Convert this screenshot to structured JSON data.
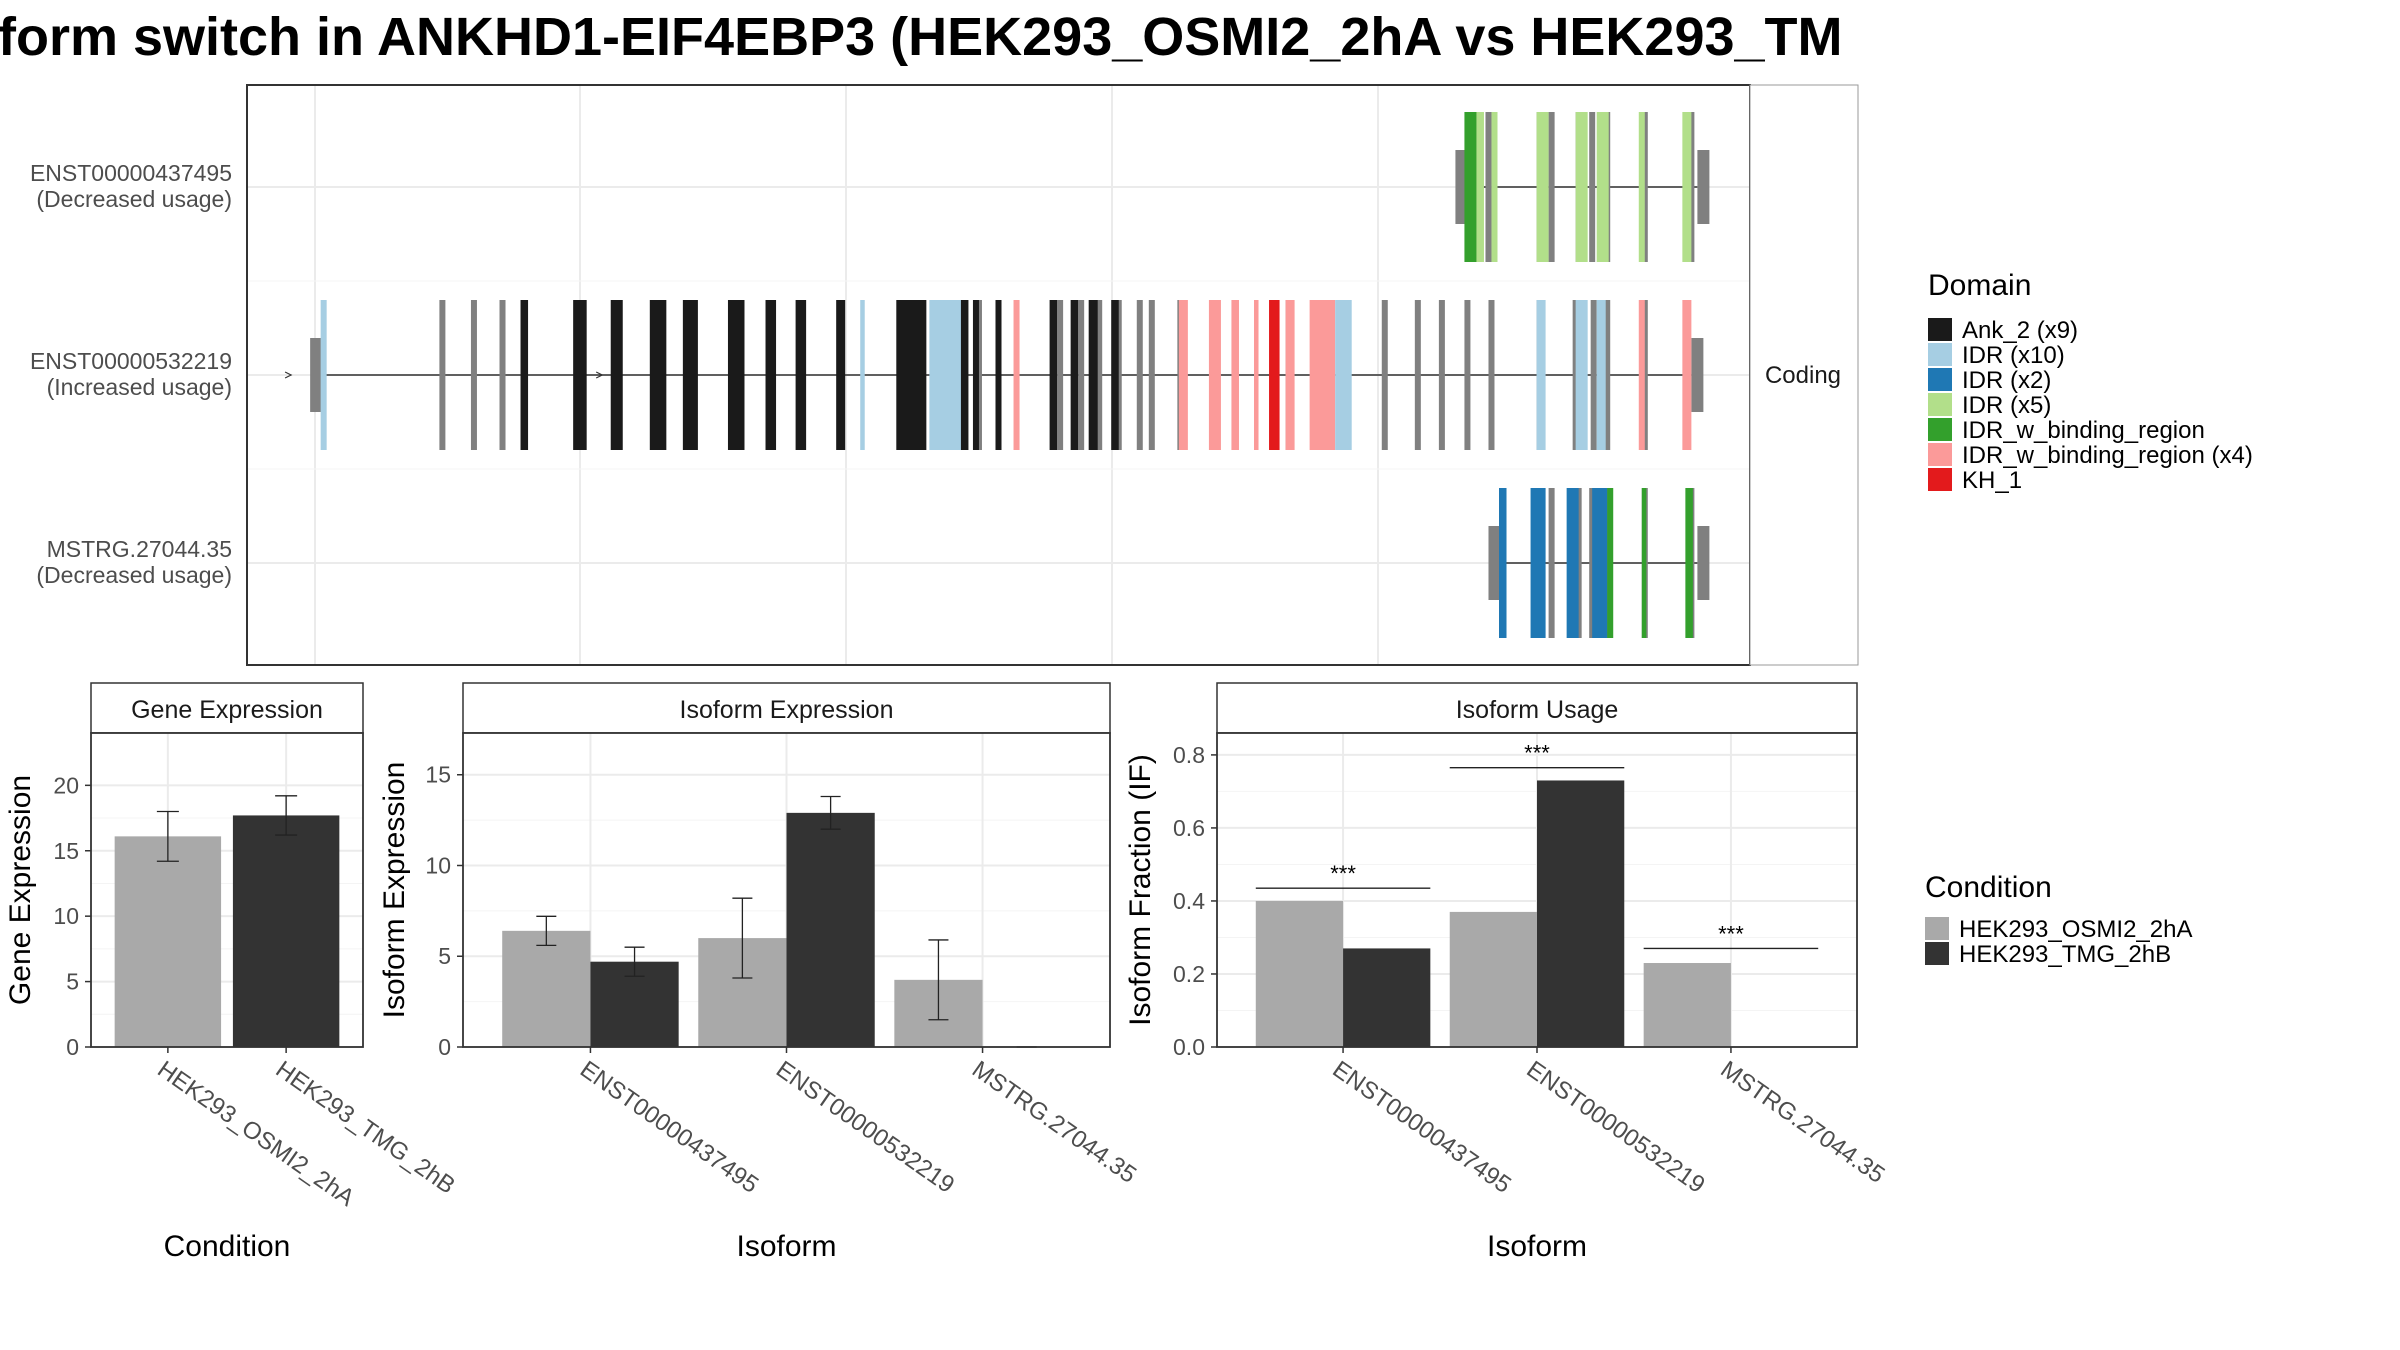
{
  "title": "form switch in ANKHD1-EIF4EBP3 (HEK293_OSMI2_2hA vs HEK293_TM",
  "colors": {
    "ank": "#1a1a1a",
    "idr10": "#a6cee3",
    "idr2": "#1f78b4",
    "idr5": "#b2df8a",
    "idrw": "#33a02c",
    "idrw4": "#fb9a99",
    "kh": "#e31a1c",
    "exon": "#808080",
    "cond_a": "#a9a9a9",
    "cond_b": "#333333",
    "grid": "#ebebeb"
  },
  "chart_data": [
    {
      "type": "gene-structure",
      "facet_label": "Coding",
      "isoforms": [
        {
          "name": "ENST00000437495",
          "usage": "(Decreased usage)",
          "exons": [
            0.808,
            0.818,
            0.826,
            0.86,
            0.868,
            0.886,
            0.895,
            0.905,
            0.93,
            0.961,
            0.965
          ],
          "domains": [
            {
              "domain": "idrw",
              "from": 0.81,
              "to": 0.818
            },
            {
              "domain": "idr5",
              "from": 0.818,
              "to": 0.823
            },
            {
              "domain": "idr5",
              "from": 0.828,
              "to": 0.832
            },
            {
              "domain": "idr5",
              "from": 0.858,
              "to": 0.866
            },
            {
              "domain": "idr5",
              "from": 0.884,
              "to": 0.892
            },
            {
              "domain": "idr5",
              "from": 0.898,
              "to": 0.906
            },
            {
              "domain": "idr5",
              "from": 0.926,
              "to": 0.93
            },
            {
              "domain": "idr5",
              "from": 0.955,
              "to": 0.961
            }
          ]
        },
        {
          "name": "ENST00000532219",
          "usage": "(Increased usage)",
          "exons": [
            0.046,
            0.13,
            0.151,
            0.17,
            0.184,
            0.221,
            0.245,
            0.275,
            0.295,
            0.327,
            0.347,
            0.368,
            0.395,
            0.473,
            0.487,
            0.5,
            0.541,
            0.555,
            0.567,
            0.58,
            0.594,
            0.602,
            0.621,
            0.657,
            0.693,
            0.727,
            0.757,
            0.779,
            0.795,
            0.812,
            0.828,
            0.86,
            0.884,
            0.896,
            0.905,
            0.93,
            0.961
          ],
          "domains": [
            {
              "domain": "idr10",
              "from": 0.049,
              "to": 0.053
            },
            {
              "domain": "ank",
              "from": 0.182,
              "to": 0.187
            },
            {
              "domain": "ank",
              "from": 0.217,
              "to": 0.226
            },
            {
              "domain": "ank",
              "from": 0.242,
              "to": 0.25
            },
            {
              "domain": "ank",
              "from": 0.268,
              "to": 0.279
            },
            {
              "domain": "ank",
              "from": 0.29,
              "to": 0.3
            },
            {
              "domain": "ank",
              "from": 0.32,
              "to": 0.331
            },
            {
              "domain": "ank",
              "from": 0.345,
              "to": 0.352
            },
            {
              "domain": "ank",
              "from": 0.365,
              "to": 0.372
            },
            {
              "domain": "ank",
              "from": 0.392,
              "to": 0.398
            },
            {
              "domain": "ank",
              "from": 0.432,
              "to": 0.452
            },
            {
              "domain": "ank",
              "from": 0.465,
              "to": 0.48
            },
            {
              "domain": "ank",
              "from": 0.483,
              "to": 0.487
            },
            {
              "domain": "ank",
              "from": 0.498,
              "to": 0.502
            },
            {
              "domain": "ank",
              "from": 0.534,
              "to": 0.539
            },
            {
              "domain": "ank",
              "from": 0.548,
              "to": 0.553
            },
            {
              "domain": "ank",
              "from": 0.56,
              "to": 0.566
            },
            {
              "domain": "ank",
              "from": 0.575,
              "to": 0.58
            },
            {
              "domain": "idr10",
              "from": 0.408,
              "to": 0.411
            },
            {
              "domain": "idr10",
              "from": 0.454,
              "to": 0.475
            },
            {
              "domain": "idrw4",
              "from": 0.51,
              "to": 0.514
            },
            {
              "domain": "idrw4",
              "from": 0.62,
              "to": 0.626
            },
            {
              "domain": "idrw4",
              "from": 0.64,
              "to": 0.648
            },
            {
              "domain": "idrw4",
              "from": 0.655,
              "to": 0.66
            },
            {
              "domain": "idrw4",
              "from": 0.67,
              "to": 0.673
            },
            {
              "domain": "kh",
              "from": 0.68,
              "to": 0.687
            },
            {
              "domain": "idrw4",
              "from": 0.691,
              "to": 0.697
            },
            {
              "domain": "idrw4",
              "from": 0.707,
              "to": 0.724
            },
            {
              "domain": "idr10",
              "from": 0.724,
              "to": 0.735
            },
            {
              "domain": "idr10",
              "from": 0.858,
              "to": 0.864
            },
            {
              "domain": "idr10",
              "from": 0.884,
              "to": 0.892
            },
            {
              "domain": "idr10",
              "from": 0.898,
              "to": 0.904
            },
            {
              "domain": "idrw4",
              "from": 0.926,
              "to": 0.93
            },
            {
              "domain": "idrw4",
              "from": 0.955,
              "to": 0.961
            }
          ]
        },
        {
          "name": "MSTRG.27044.35",
          "usage": "(Decreased usage)",
          "exons": [
            0.83,
            0.86,
            0.868,
            0.886,
            0.895,
            0.905,
            0.93,
            0.961,
            0.965
          ],
          "domains": [
            {
              "domain": "idr2",
              "from": 0.833,
              "to": 0.838
            },
            {
              "domain": "idr2",
              "from": 0.854,
              "to": 0.864
            },
            {
              "domain": "idr2",
              "from": 0.878,
              "to": 0.886
            },
            {
              "domain": "idr2",
              "from": 0.895,
              "to": 0.905
            },
            {
              "domain": "idrw",
              "from": 0.905,
              "to": 0.909
            },
            {
              "domain": "idrw",
              "from": 0.928,
              "to": 0.931
            },
            {
              "domain": "idrw",
              "from": 0.957,
              "to": 0.962
            }
          ]
        }
      ]
    },
    {
      "type": "bar",
      "facet_label": "Gene Expression",
      "xlabel": "Condition",
      "ylabel": "Gene Expression",
      "categories": [
        "HEK293_OSMI2_2hA",
        "HEK293_TMG_2hB"
      ],
      "values": [
        16.1,
        17.7
      ],
      "error": [
        [
          14.2,
          18.0
        ],
        [
          16.2,
          19.2
        ]
      ],
      "ylim": [
        0,
        24
      ],
      "yticks": [
        0,
        5,
        10,
        15,
        20
      ]
    },
    {
      "type": "bar",
      "facet_label": "Isoform Expression",
      "xlabel": "Isoform",
      "ylabel": "Isoform Expression",
      "categories": [
        "ENST00000437495",
        "ENST00000532219",
        "MSTRG.27044.35"
      ],
      "series": [
        {
          "name": "HEK293_OSMI2_2hA",
          "values": [
            6.4,
            6.0,
            3.7
          ],
          "error": [
            [
              5.6,
              7.2
            ],
            [
              3.8,
              8.2
            ],
            [
              1.5,
              5.9
            ]
          ]
        },
        {
          "name": "HEK293_TMG_2hB",
          "values": [
            4.7,
            12.9,
            0.0
          ],
          "error": [
            [
              3.9,
              5.5
            ],
            [
              12.0,
              13.8
            ],
            [
              0.0,
              0.0
            ]
          ]
        }
      ],
      "ylim": [
        0,
        17.3
      ],
      "yticks": [
        0,
        5,
        10,
        15
      ]
    },
    {
      "type": "bar",
      "facet_label": "Isoform Usage",
      "xlabel": "Isoform",
      "ylabel": "Isoform Fraction (IF)",
      "categories": [
        "ENST00000437495",
        "ENST00000532219",
        "MSTRG.27044.35"
      ],
      "series": [
        {
          "name": "HEK293_OSMI2_2hA",
          "values": [
            0.4,
            0.37,
            0.23
          ]
        },
        {
          "name": "HEK293_TMG_2hB",
          "values": [
            0.27,
            0.73,
            0.0
          ]
        }
      ],
      "significance": [
        {
          "label": "***",
          "y": 0.435
        },
        {
          "label": "***",
          "y": 0.765
        },
        {
          "label": "***",
          "y": 0.27
        }
      ],
      "ylim": [
        0,
        0.86
      ],
      "yticks": [
        0.0,
        0.2,
        0.4,
        0.6,
        0.8
      ]
    }
  ],
  "legends": {
    "domain": {
      "title": "Domain",
      "items": [
        {
          "key": "ank",
          "label": "Ank_2 (x9)"
        },
        {
          "key": "idr10",
          "label": "IDR (x10)"
        },
        {
          "key": "idr2",
          "label": "IDR (x2)"
        },
        {
          "key": "idr5",
          "label": "IDR (x5)"
        },
        {
          "key": "idrw",
          "label": "IDR_w_binding_region"
        },
        {
          "key": "idrw4",
          "label": "IDR_w_binding_region (x4)"
        },
        {
          "key": "kh",
          "label": "KH_1"
        }
      ]
    },
    "condition": {
      "title": "Condition",
      "items": [
        {
          "key": "cond_a",
          "label": "HEK293_OSMI2_2hA"
        },
        {
          "key": "cond_b",
          "label": "HEK293_TMG_2hB"
        }
      ]
    }
  }
}
